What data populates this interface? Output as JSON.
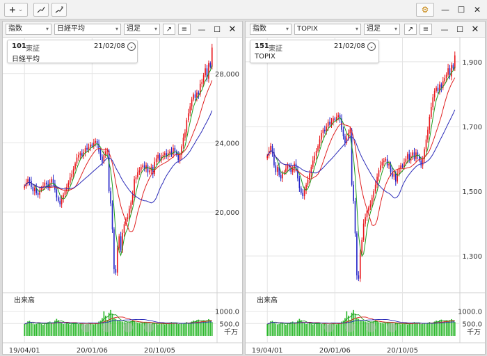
{
  "toolbar": {
    "add_label": "+",
    "add_dropdown": "⌄",
    "trend_icons": [
      "trend-line-icon",
      "trend-line-alt-icon"
    ]
  },
  "window_controls": {
    "settings": "⚙",
    "minimize": "—",
    "maximize": "☐",
    "close": "✕"
  },
  "colors": {
    "up": "#e8161a",
    "down": "#2323c8",
    "ma_short": "#1a9a1a",
    "ma_mid": "#e02020",
    "ma_long": "#2a2ab8",
    "volume": "#2cb82c",
    "grid": "#e4e4e4"
  },
  "panels": [
    {
      "type_select": "指数",
      "symbol_select": "日経平均",
      "period_select": "週足",
      "code": "101",
      "exchange": "東証",
      "date": "21/02/08",
      "name": "日経平均",
      "volume_label": "出来高",
      "volume_unit": "千万",
      "x_labels": [
        "19/04/01",
        "20/01/06",
        "20/10/05"
      ],
      "y_labels": [
        "28,000",
        "24,000",
        "20,000"
      ],
      "y_values": [
        28000,
        24000,
        20000
      ],
      "y_range": [
        15500,
        29800
      ],
      "vol_labels": [
        "1000.0",
        "500.0"
      ],
      "vol_values": [
        1000,
        500
      ],
      "vol_range": [
        0,
        1300
      ],
      "chart_data": {
        "type": "candlestick",
        "interval": "weekly",
        "start": "19/04/01",
        "end": "21/02/08",
        "close": [
          21500,
          21700,
          21900,
          21800,
          21450,
          21200,
          21400,
          21100,
          21000,
          21250,
          21400,
          21500,
          21700,
          21600,
          21400,
          21700,
          21900,
          21650,
          21300,
          20850,
          20650,
          20450,
          20800,
          21000,
          21200,
          21450,
          21700,
          22000,
          22200,
          22500,
          22800,
          23150,
          23300,
          23400,
          23250,
          23450,
          23700,
          23600,
          23750,
          23900,
          23800,
          24000,
          24100,
          23950,
          23500,
          23200,
          22900,
          23300,
          23500,
          23550,
          21200,
          20500,
          19000,
          16700,
          16500,
          17900,
          18600,
          17800,
          18800,
          19300,
          19600,
          19700,
          20200,
          20550,
          21000,
          21900,
          22000,
          22300,
          22400,
          22600,
          22700,
          22500,
          22700,
          22300,
          22400,
          22600,
          22200,
          22900,
          23100,
          23300,
          23000,
          23200,
          23300,
          23400,
          23200,
          23400,
          23500,
          23300,
          23700,
          23500,
          23300,
          23000,
          23300,
          23800,
          24300,
          24600,
          25300,
          25700,
          26100,
          26500,
          26800,
          26600,
          26900,
          26800,
          27400,
          27500,
          27900,
          28300,
          27700,
          28600,
          28400,
          29500
        ],
        "volume": [
          480,
          520,
          590,
          610,
          560,
          500,
          470,
          490,
          550,
          530,
          480,
          450,
          500,
          520,
          560,
          580,
          510,
          490,
          620,
          690,
          640,
          560,
          520,
          480,
          500,
          520,
          480,
          460,
          500,
          520,
          540,
          520,
          480,
          500,
          520,
          480,
          460,
          500,
          540,
          520,
          490,
          470,
          500,
          530,
          580,
          620,
          720,
          1000,
          820,
          650,
          940,
          1050,
          900,
          720,
          690,
          640,
          620,
          600,
          580,
          560,
          540,
          560,
          580,
          600,
          620,
          590,
          560,
          540,
          520,
          500,
          520,
          560,
          540,
          520,
          500,
          480,
          510,
          530,
          490,
          470,
          500,
          520,
          480,
          460,
          500,
          520,
          540,
          560,
          530,
          500,
          520,
          480,
          500,
          520,
          490,
          530,
          560,
          520,
          540,
          580,
          620,
          600,
          640,
          660,
          580,
          600,
          620,
          580,
          640,
          680,
          620,
          560
        ]
      }
    },
    {
      "type_select": "指数",
      "symbol_select": "TOPIX",
      "period_select": "週足",
      "code": "151",
      "exchange": "東証",
      "date": "21/02/08",
      "name": "TOPIX",
      "volume_label": "出来高",
      "volume_unit": "千万",
      "x_labels": [
        "19/04/01",
        "20/01/06",
        "20/10/05"
      ],
      "y_labels": [
        "1,900",
        "1,700",
        "1,500",
        "1,300"
      ],
      "y_values": [
        1900,
        1700,
        1500,
        1300
      ],
      "y_range": [
        1195,
        1960
      ],
      "vol_labels": [
        "1000.0",
        "500.0"
      ],
      "vol_values": [
        1000,
        500
      ],
      "vol_range": [
        0,
        1300
      ],
      "chart_data": {
        "type": "candlestick",
        "interval": "weekly",
        "start": "19/04/01",
        "end": "21/02/08",
        "close": [
          1610,
          1625,
          1640,
          1620,
          1580,
          1560,
          1575,
          1550,
          1540,
          1555,
          1560,
          1570,
          1580,
          1575,
          1560,
          1570,
          1585,
          1565,
          1540,
          1510,
          1495,
          1485,
          1505,
          1520,
          1535,
          1555,
          1575,
          1595,
          1610,
          1625,
          1640,
          1660,
          1680,
          1690,
          1685,
          1700,
          1715,
          1705,
          1715,
          1725,
          1720,
          1730,
          1735,
          1725,
          1690,
          1670,
          1650,
          1665,
          1680,
          1690,
          1520,
          1470,
          1370,
          1240,
          1230,
          1310,
          1350,
          1400,
          1420,
          1440,
          1450,
          1460,
          1480,
          1500,
          1520,
          1545,
          1565,
          1580,
          1590,
          1595,
          1600,
          1580,
          1585,
          1560,
          1545,
          1555,
          1530,
          1555,
          1570,
          1580,
          1575,
          1590,
          1600,
          1615,
          1595,
          1610,
          1620,
          1600,
          1620,
          1610,
          1595,
          1580,
          1600,
          1630,
          1660,
          1690,
          1730,
          1760,
          1790,
          1810,
          1820,
          1810,
          1830,
          1820,
          1840,
          1850,
          1860,
          1880,
          1855,
          1890,
          1880,
          1920
        ],
        "volume": [
          480,
          520,
          590,
          610,
          560,
          500,
          470,
          490,
          550,
          530,
          480,
          450,
          500,
          520,
          560,
          580,
          510,
          490,
          620,
          690,
          640,
          560,
          520,
          480,
          500,
          520,
          480,
          460,
          500,
          520,
          540,
          520,
          480,
          500,
          520,
          480,
          460,
          500,
          540,
          520,
          490,
          470,
          500,
          530,
          580,
          620,
          720,
          1000,
          820,
          650,
          940,
          1050,
          900,
          720,
          690,
          640,
          620,
          600,
          580,
          560,
          540,
          560,
          580,
          600,
          620,
          590,
          560,
          540,
          520,
          500,
          520,
          560,
          540,
          520,
          500,
          480,
          510,
          530,
          490,
          470,
          500,
          520,
          480,
          460,
          500,
          520,
          540,
          560,
          530,
          500,
          520,
          480,
          500,
          520,
          490,
          530,
          560,
          520,
          540,
          580,
          620,
          600,
          640,
          660,
          580,
          600,
          620,
          580,
          640,
          680,
          620,
          560
        ]
      }
    }
  ]
}
